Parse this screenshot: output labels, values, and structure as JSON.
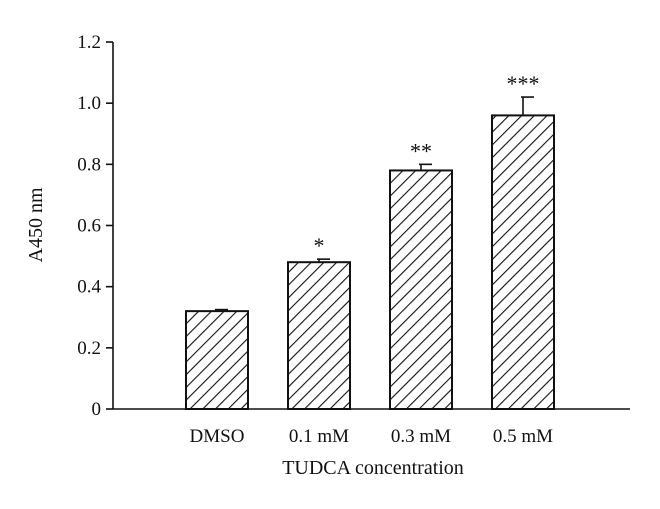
{
  "chart_data": {
    "type": "bar",
    "categories": [
      "DMSO",
      "0.1 mM",
      "0.3 mM",
      "0.5 mM"
    ],
    "values": [
      0.32,
      0.48,
      0.78,
      0.96
    ],
    "errors": [
      0.005,
      0.01,
      0.02,
      0.06
    ],
    "significance": [
      "",
      "*",
      "**",
      "***"
    ],
    "xlabel": "TUDCA concentration",
    "ylabel": "A450 nm",
    "ylim": [
      0,
      1.2
    ],
    "yticks": [
      "0",
      "0.2",
      "0.4",
      "0.6",
      "0.8",
      "1.0",
      "1.2"
    ],
    "grid": false,
    "legend": "none",
    "bar_fill": "hatched",
    "colors": {
      "bar_stroke": "#111111",
      "hatch": "#111111",
      "axis": "#111111"
    }
  }
}
